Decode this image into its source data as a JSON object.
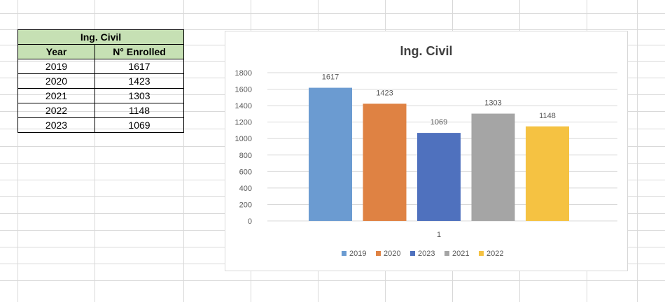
{
  "table": {
    "title": "Ing. Civil",
    "headers": [
      "Year",
      "N° Enrolled"
    ],
    "rows": [
      [
        "2019",
        "1617"
      ],
      [
        "2020",
        "1423"
      ],
      [
        "2021",
        "1303"
      ],
      [
        "2022",
        "1148"
      ],
      [
        "2023",
        "1069"
      ]
    ]
  },
  "chart_data": {
    "type": "bar",
    "title": "Ing. Civil",
    "categories": [
      "1"
    ],
    "series": [
      {
        "name": "2019",
        "values": [
          1617
        ],
        "color": "#6b9bd1"
      },
      {
        "name": "2020",
        "values": [
          1423
        ],
        "color": "#df8243"
      },
      {
        "name": "2023",
        "values": [
          1069
        ],
        "color": "#4f71be"
      },
      {
        "name": "2021",
        "values": [
          1303
        ],
        "color": "#a5a5a5"
      },
      {
        "name": "2022",
        "values": [
          1148
        ],
        "color": "#f5c242"
      }
    ],
    "ylim": [
      0,
      1800
    ],
    "yticks": [
      "0",
      "200",
      "400",
      "600",
      "800",
      "1000",
      "1200",
      "1400",
      "1600",
      "1800"
    ],
    "grid": true,
    "legend": "bottom",
    "data_labels": true
  }
}
